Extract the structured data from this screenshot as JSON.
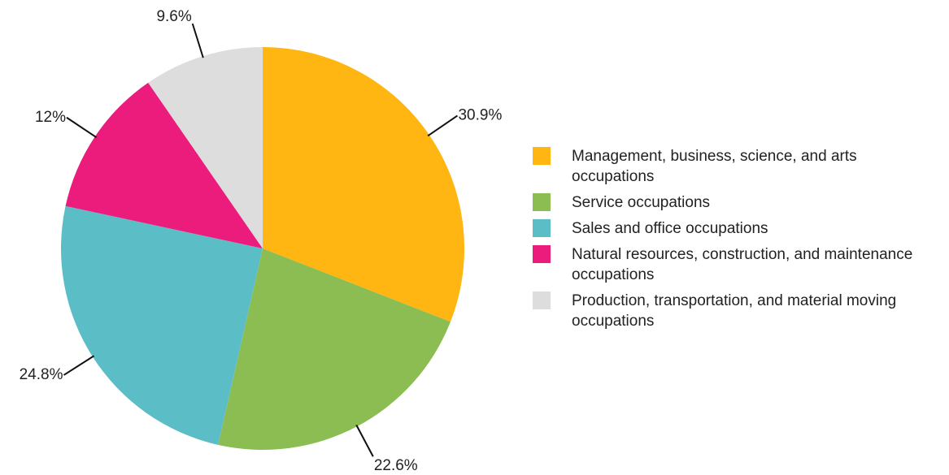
{
  "chart_data": {
    "type": "pie",
    "categories": [
      "Management, business, science, and arts occupations",
      "Service occupations",
      "Sales and office occupations",
      "Natural resources, construction, and maintenance occupations",
      "Production, transportation, and material moving occupations"
    ],
    "values": [
      30.9,
      22.6,
      24.8,
      12,
      9.6
    ],
    "value_labels": [
      "30.9%",
      "22.6%",
      "24.8%",
      "12%",
      "9.6%"
    ],
    "colors": [
      "#FFB612",
      "#8BBD53",
      "#5BBDC6",
      "#EC1C7C",
      "#DDDDDD"
    ],
    "legend": "right"
  }
}
